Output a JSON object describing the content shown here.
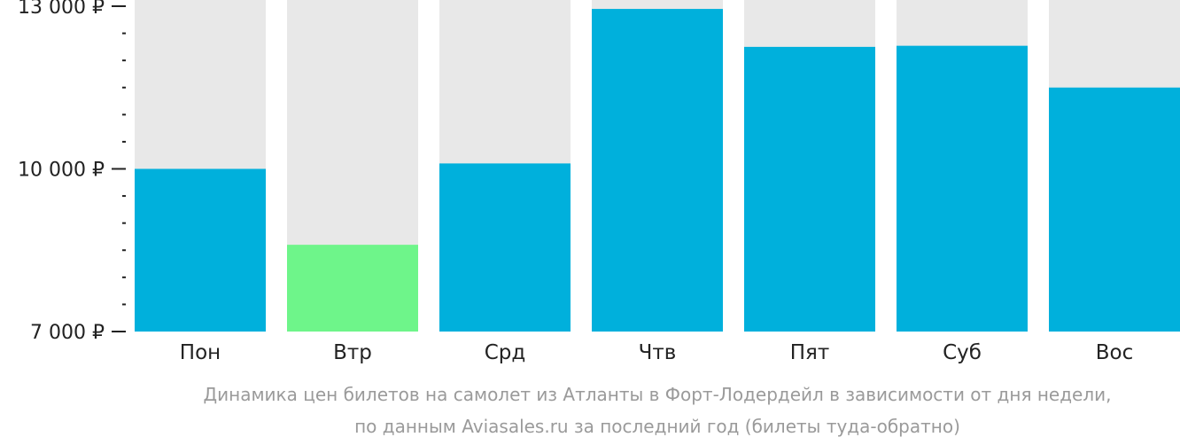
{
  "chart_data": {
    "type": "bar",
    "currency_symbol": "₽",
    "categories": [
      "Пон",
      "Втр",
      "Срд",
      "Чтв",
      "Пят",
      "Суб",
      "Вос"
    ],
    "values": [
      10000,
      8600,
      10100,
      12950,
      12250,
      12270,
      11500
    ],
    "highlight_index": 1,
    "ylim": [
      7000,
      13000
    ],
    "major_ticks": [
      {
        "value": 13000,
        "label": "13 000 ₽"
      },
      {
        "value": 10000,
        "label": "10 000 ₽"
      },
      {
        "value": 7000,
        "label": "7 000 ₽"
      }
    ],
    "minor_tick_step": 500,
    "caption_lines": [
      "Динамика цен билетов на самолет из Атланты в Форт-Лодердейл в зависимости от дня недели,",
      "по данным Aviasales.ru за последний год (билеты туда-обратно)"
    ],
    "colors": {
      "bar": "#00b0dc",
      "highlight": "#6ef58a",
      "track": "#e8e8e8",
      "axis": "#222222",
      "caption": "#9a9a9a"
    }
  }
}
